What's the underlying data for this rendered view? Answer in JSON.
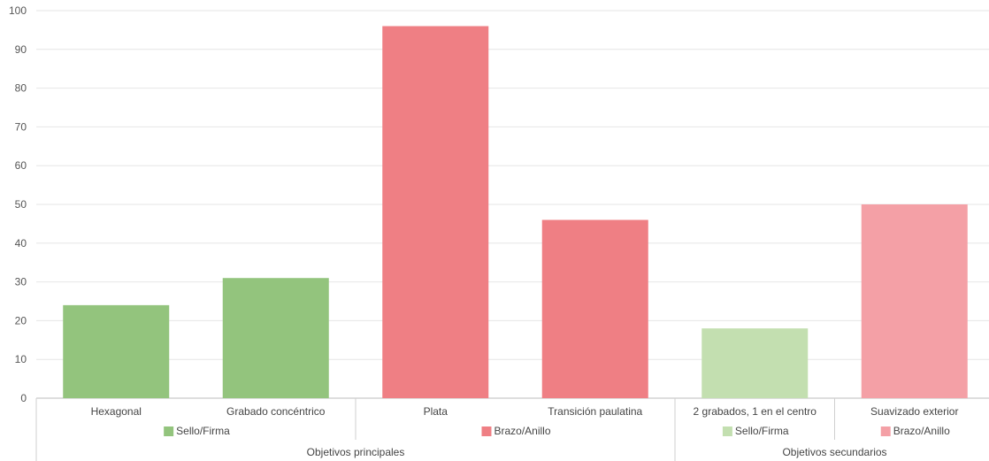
{
  "chart_data": {
    "type": "bar",
    "ylim": [
      0,
      100
    ],
    "y_ticks": [
      0,
      10,
      20,
      30,
      40,
      50,
      60,
      70,
      80,
      90,
      100
    ],
    "grid": true,
    "categories": [
      "Hexagonal",
      "Grabado concéntrico",
      "Plata",
      "Transición paulatina",
      "2 grabados, 1 en el centro",
      "Suavizado exterior"
    ],
    "values": [
      24,
      31,
      96,
      46,
      18,
      50
    ],
    "colors": [
      "#93c47d",
      "#93c47d",
      "#ef7f84",
      "#ef7f84",
      "#c3dfb0",
      "#f4a0a6"
    ],
    "subgroups": [
      {
        "label": "Sello/Firma",
        "color": "#93c47d",
        "span": [
          0,
          1
        ]
      },
      {
        "label": "Brazo/Anillo",
        "color": "#ef7f84",
        "span": [
          2,
          3
        ]
      },
      {
        "label": "Sello/Firma",
        "color": "#c3dfb0",
        "span": [
          4,
          4
        ]
      },
      {
        "label": "Brazo/Anillo",
        "color": "#f4a0a6",
        "span": [
          5,
          5
        ]
      }
    ],
    "groups": [
      {
        "label": "Objetivos principales",
        "span": [
          0,
          3
        ]
      },
      {
        "label": "Objetivos secundarios",
        "span": [
          4,
          5
        ]
      }
    ]
  }
}
